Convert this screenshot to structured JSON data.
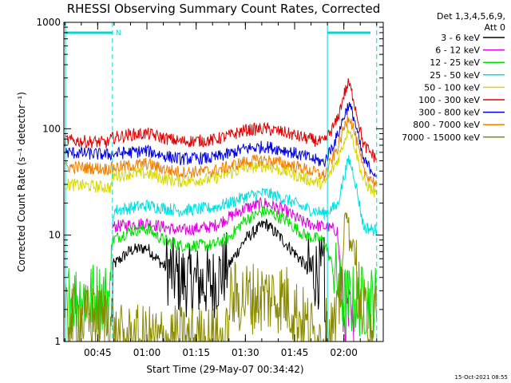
{
  "chart_data": {
    "type": "line",
    "title": "RHESSI Observing Summary Count Rates, Corrected",
    "xlabel": "Start Time (29-May-07 00:34:42)",
    "ylabel": "Corrected Count Rate (s⁻¹ detector⁻¹)",
    "y_scale": "log",
    "ylim": [
      1,
      1000
    ],
    "xlim": [
      "00:34:42",
      "02:12:00"
    ],
    "x_ticks": [
      "00:45",
      "01:00",
      "01:15",
      "01:30",
      "01:45",
      "02:00"
    ],
    "y_ticks": [
      "1",
      "10",
      "100",
      "1000"
    ],
    "legend_header": [
      "Det 1,3,4,5,6,9,",
      "Att 0"
    ],
    "legend_position": "right",
    "timestamp": "15-Oct-2021 08:55",
    "night_marker": "N",
    "series": [
      {
        "name": "3 - 6 keV",
        "color": "#000000",
        "points": [
          [
            "00:49:30",
            1.2
          ],
          [
            "00:49:40",
            5.2
          ],
          [
            "00:55",
            7.2
          ],
          [
            "01:00",
            7.6
          ],
          [
            "01:05",
            5.2
          ],
          [
            "01:10",
            3.8
          ],
          [
            "01:20",
            3.5
          ],
          [
            "01:25",
            5.2
          ],
          [
            "01:30",
            9.2
          ],
          [
            "01:36",
            13
          ],
          [
            "01:40",
            10
          ],
          [
            "01:45",
            6.8
          ],
          [
            "01:50",
            4.5
          ],
          [
            "01:54",
            4.4
          ],
          [
            "01:55",
            1.2
          ]
        ]
      },
      {
        "name": "6 - 12 keV",
        "color": "#e000e0",
        "points": [
          [
            "00:49:30",
            12
          ],
          [
            "01:00",
            13
          ],
          [
            "01:10",
            11
          ],
          [
            "01:20",
            12
          ],
          [
            "01:30",
            18
          ],
          [
            "01:36",
            20
          ],
          [
            "01:42",
            17
          ],
          [
            "01:48",
            13
          ],
          [
            "01:54",
            12
          ],
          [
            "01:58",
            11
          ],
          [
            "02:00",
            1.6
          ],
          [
            "02:02",
            1.6
          ],
          [
            "02:03",
            1.0
          ]
        ]
      },
      {
        "name": "12 - 25 keV",
        "color": "#00e000",
        "points": [
          [
            "00:36",
            2.6
          ],
          [
            "00:49",
            2.6
          ],
          [
            "00:49:30",
            9
          ],
          [
            "00:55",
            11
          ],
          [
            "01:00",
            11.5
          ],
          [
            "01:05",
            9
          ],
          [
            "01:10",
            8
          ],
          [
            "01:20",
            8
          ],
          [
            "01:25",
            9.5
          ],
          [
            "01:30",
            14
          ],
          [
            "01:36",
            17
          ],
          [
            "01:42",
            14
          ],
          [
            "01:48",
            10
          ],
          [
            "01:54",
            8.8
          ],
          [
            "02:00",
            2.4
          ],
          [
            "02:10",
            2.4
          ]
        ]
      },
      {
        "name": "25 - 50 keV",
        "color": "#00e0e0",
        "points": [
          [
            "00:49:30",
            13
          ],
          [
            "00:50",
            17
          ],
          [
            "00:55",
            18
          ],
          [
            "01:00",
            19
          ],
          [
            "01:05",
            18
          ],
          [
            "01:10",
            17
          ],
          [
            "01:20",
            18
          ],
          [
            "01:25",
            20
          ],
          [
            "01:30",
            23
          ],
          [
            "01:36",
            25
          ],
          [
            "01:42",
            22
          ],
          [
            "01:48",
            18
          ],
          [
            "01:54",
            16
          ],
          [
            "01:58",
            19
          ],
          [
            "02:00",
            35
          ],
          [
            "02:01:30",
            52
          ],
          [
            "02:03",
            38
          ],
          [
            "02:06",
            12
          ],
          [
            "02:10",
            11
          ]
        ]
      },
      {
        "name": "50 - 100 keV",
        "color": "#d8d800",
        "points": [
          [
            "00:35",
            30
          ],
          [
            "00:49",
            28
          ],
          [
            "00:49:30",
            36
          ],
          [
            "00:55",
            38
          ],
          [
            "01:00",
            38
          ],
          [
            "01:05",
            34
          ],
          [
            "01:10",
            32
          ],
          [
            "01:20",
            34
          ],
          [
            "01:25",
            38
          ],
          [
            "01:30",
            43
          ],
          [
            "01:36",
            45
          ],
          [
            "01:42",
            40
          ],
          [
            "01:48",
            34
          ],
          [
            "01:54",
            30
          ],
          [
            "01:58",
            50
          ],
          [
            "02:00",
            75
          ],
          [
            "02:01:30",
            105
          ],
          [
            "02:03",
            75
          ],
          [
            "02:06",
            32
          ],
          [
            "02:10",
            24
          ]
        ]
      },
      {
        "name": "100 - 300 keV",
        "color": "#e00000",
        "points": [
          [
            "00:35",
            78
          ],
          [
            "00:48",
            74
          ],
          [
            "00:49:30",
            82
          ],
          [
            "00:55",
            88
          ],
          [
            "01:00",
            90
          ],
          [
            "01:05",
            82
          ],
          [
            "01:10",
            76
          ],
          [
            "01:20",
            78
          ],
          [
            "01:25",
            86
          ],
          [
            "01:30",
            97
          ],
          [
            "01:36",
            100
          ],
          [
            "01:42",
            92
          ],
          [
            "01:48",
            82
          ],
          [
            "01:54",
            74
          ],
          [
            "01:58",
            120
          ],
          [
            "02:00",
            210
          ],
          [
            "02:01:30",
            270
          ],
          [
            "02:03",
            190
          ],
          [
            "02:06",
            70
          ],
          [
            "02:10",
            52
          ]
        ]
      },
      {
        "name": "300 - 800 keV",
        "color": "#0000e0",
        "points": [
          [
            "00:35",
            60
          ],
          [
            "00:48",
            57
          ],
          [
            "00:49:30",
            58
          ],
          [
            "00:55",
            60
          ],
          [
            "01:00",
            62
          ],
          [
            "01:05",
            56
          ],
          [
            "01:10",
            52
          ],
          [
            "01:20",
            53
          ],
          [
            "01:25",
            58
          ],
          [
            "01:30",
            65
          ],
          [
            "01:36",
            68
          ],
          [
            "01:42",
            63
          ],
          [
            "01:48",
            55
          ],
          [
            "01:54",
            48
          ],
          [
            "01:58",
            85
          ],
          [
            "02:00",
            130
          ],
          [
            "02:01:30",
            170
          ],
          [
            "02:03",
            130
          ],
          [
            "02:06",
            50
          ],
          [
            "02:10",
            37
          ]
        ]
      },
      {
        "name": "800 - 7000 keV",
        "color": "#f08000",
        "points": [
          [
            "00:35",
            44
          ],
          [
            "00:48",
            42
          ],
          [
            "00:49:30",
            43
          ],
          [
            "00:55",
            45
          ],
          [
            "01:00",
            47
          ],
          [
            "01:05",
            42
          ],
          [
            "01:10",
            39
          ],
          [
            "01:20",
            40
          ],
          [
            "01:25",
            44
          ],
          [
            "01:30",
            49
          ],
          [
            "01:36",
            51
          ],
          [
            "01:42",
            47
          ],
          [
            "01:48",
            42
          ],
          [
            "01:54",
            36
          ],
          [
            "01:58",
            65
          ],
          [
            "02:00",
            100
          ],
          [
            "02:01:30",
            135
          ],
          [
            "02:03",
            100
          ],
          [
            "02:06",
            40
          ],
          [
            "02:10",
            30
          ]
        ]
      },
      {
        "name": "7000 - 15000 keV",
        "color": "#8a8a00",
        "points": [
          [
            "00:35",
            1.6
          ],
          [
            "00:49:30",
            1.6
          ],
          [
            "00:50",
            1.0
          ],
          [
            "01:05",
            1.0
          ],
          [
            "01:25",
            1.0
          ],
          [
            "01:26",
            2.6
          ],
          [
            "01:42",
            2.6
          ],
          [
            "01:52",
            1.0
          ],
          [
            "01:58",
            1.4
          ],
          [
            "02:00",
            8
          ],
          [
            "02:01:30",
            15
          ],
          [
            "02:03",
            8
          ],
          [
            "02:05",
            2.0
          ],
          [
            "02:07",
            1.6
          ],
          [
            "02:10",
            1.6
          ]
        ]
      }
    ]
  }
}
